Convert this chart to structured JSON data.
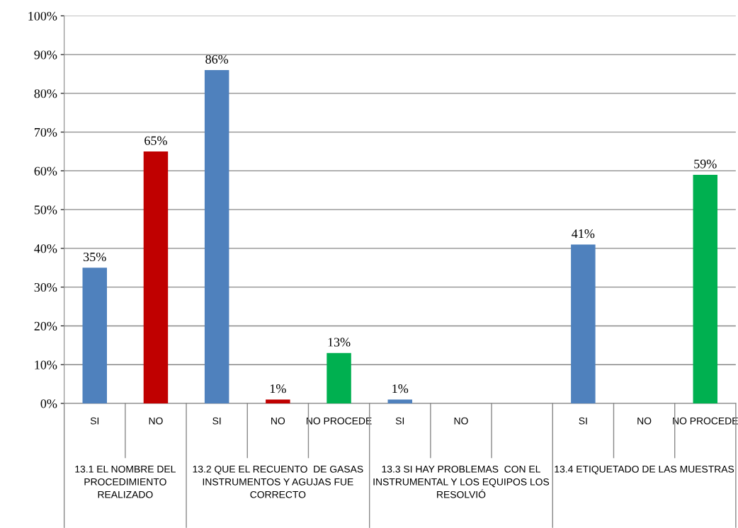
{
  "chart_data": {
    "type": "bar",
    "categories": [
      "SI",
      "NO",
      "SI",
      "NO",
      "NO PROCEDE",
      "SI",
      "NO",
      null,
      "SI",
      "NO",
      "NO PROCEDE"
    ],
    "values": [
      35,
      65,
      86,
      1,
      13,
      1,
      null,
      null,
      41,
      null,
      59
    ],
    "colors": [
      "#4f81bd",
      "#c00000",
      "#4f81bd",
      "#c00000",
      "#00b050",
      "#4f81bd",
      "#c00000",
      "#4f81bd",
      "#4f81bd",
      "#c00000",
      "#00b050"
    ],
    "value_labels": [
      "35%",
      "65%",
      "86%",
      "1%",
      "13%",
      "1%",
      null,
      null,
      "41%",
      null,
      "59%"
    ],
    "annotations": [
      "13.1 EL NOMBRE DEL\nPROCEDIMIENTO\nREALIZADO",
      "13.2 QUE EL RECUENTO  DE GASAS\nINSTRUMENTOS Y AGUJAS FUE\nCORRECTO",
      "13.3 SI HAY PROBLEMAS  CON EL\nINSTRUMENTAL Y LOS EQUIPOS LOS\nRESOLVIÓ",
      "13.4 ETIQUETADO DE LAS MUESTRAS"
    ],
    "ylim": [
      0,
      100
    ],
    "yticks": [
      {
        "value": 0,
        "label": "0%"
      },
      {
        "value": 10,
        "label": "10%"
      },
      {
        "value": 20,
        "label": "20%"
      },
      {
        "value": 30,
        "label": "30%"
      },
      {
        "value": 40,
        "label": "40%"
      },
      {
        "value": 50,
        "label": "50%"
      },
      {
        "value": 60,
        "label": "60%"
      },
      {
        "value": 70,
        "label": "70%"
      },
      {
        "value": 80,
        "label": "80%"
      },
      {
        "value": 90,
        "label": "90%"
      },
      {
        "value": 100,
        "label": "100%"
      }
    ],
    "grid": "y",
    "legend": false
  }
}
